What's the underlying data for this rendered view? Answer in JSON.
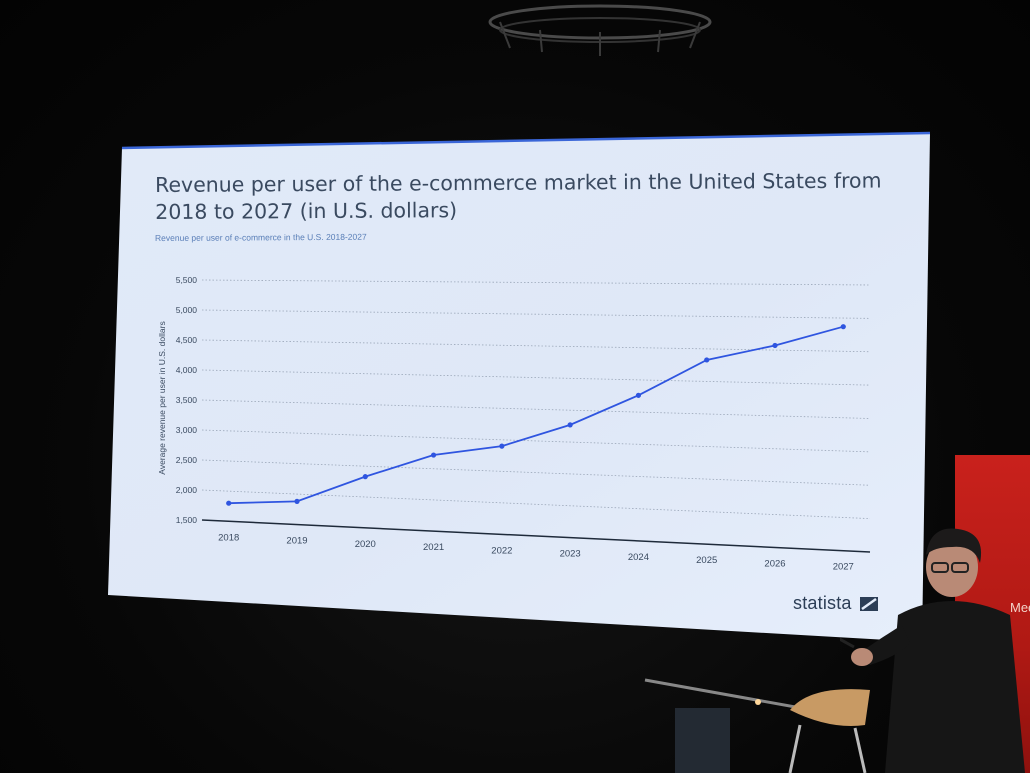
{
  "slide": {
    "title": "Revenue per user of the e-commerce market in the United States from 2018 to 2027 (in U.S. dollars)",
    "subtitle": "Revenue per user of e-commerce in the U.S. 2018-2027",
    "logo_text": "statista",
    "colors": {
      "background": "#e4edfa",
      "line": "#2f55e0",
      "text": "#3a4a60"
    }
  },
  "chart_data": {
    "type": "line",
    "title": "Revenue per user of the e-commerce market in the United States from 2018 to 2027 (in U.S. dollars)",
    "subtitle": "Revenue per user of e-commerce in the U.S. 2018-2027",
    "xlabel": "",
    "ylabel": "Average revenue per user in U.S. dollars",
    "categories": [
      "2018",
      "2019",
      "2020",
      "2021",
      "2022",
      "2023",
      "2024",
      "2025",
      "2026",
      "2027"
    ],
    "values": [
      1800,
      1880,
      2330,
      2720,
      2900,
      3270,
      3760,
      4330,
      4570,
      4870
    ],
    "ylim": [
      1500,
      5500
    ],
    "yticks": [
      1500,
      2000,
      2500,
      3000,
      3500,
      4000,
      4500,
      5000,
      5500
    ],
    "ytick_labels": [
      "1,500",
      "2,000",
      "2,500",
      "3,000",
      "3,500",
      "4,000",
      "4,500",
      "5,000",
      "5,500"
    ],
    "grid": true,
    "legend": "none"
  },
  "scene": {
    "banner_text": "Meet Mag"
  }
}
